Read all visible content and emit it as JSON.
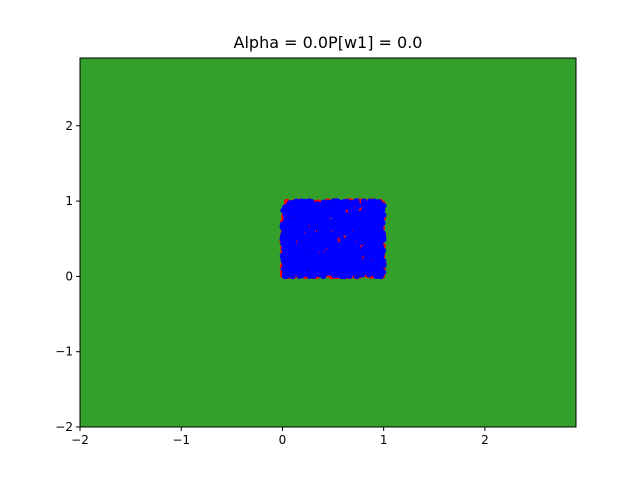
{
  "chart_data": {
    "type": "scatter",
    "title": "Alpha = 0.0P[w1] = 0.0",
    "xlabel": "",
    "ylabel": "",
    "xlim": [
      -2,
      2.9
    ],
    "ylim": [
      -2,
      2.9
    ],
    "x_ticks": [
      -2,
      -1,
      0,
      1,
      2
    ],
    "y_ticks": [
      -2,
      -1,
      0,
      1,
      2
    ],
    "x_tick_labels": [
      "−2",
      "−1",
      "0",
      "1",
      "2"
    ],
    "y_tick_labels": [
      "−2",
      "−1",
      "0",
      "1",
      "2"
    ],
    "grid": false,
    "background_region": {
      "description": "decision region filling plot area",
      "color": "#33a02c",
      "x": [
        -2,
        2.9
      ],
      "y": [
        -2,
        2.9
      ]
    },
    "series": [
      {
        "color": "#ff0000",
        "region": {
          "x": [
            0,
            1
          ],
          "y": [
            0,
            1
          ]
        }
      },
      {
        "color": "#0000ff",
        "region": {
          "x": [
            0,
            1
          ],
          "y": [
            0,
            1
          ]
        }
      }
    ]
  }
}
